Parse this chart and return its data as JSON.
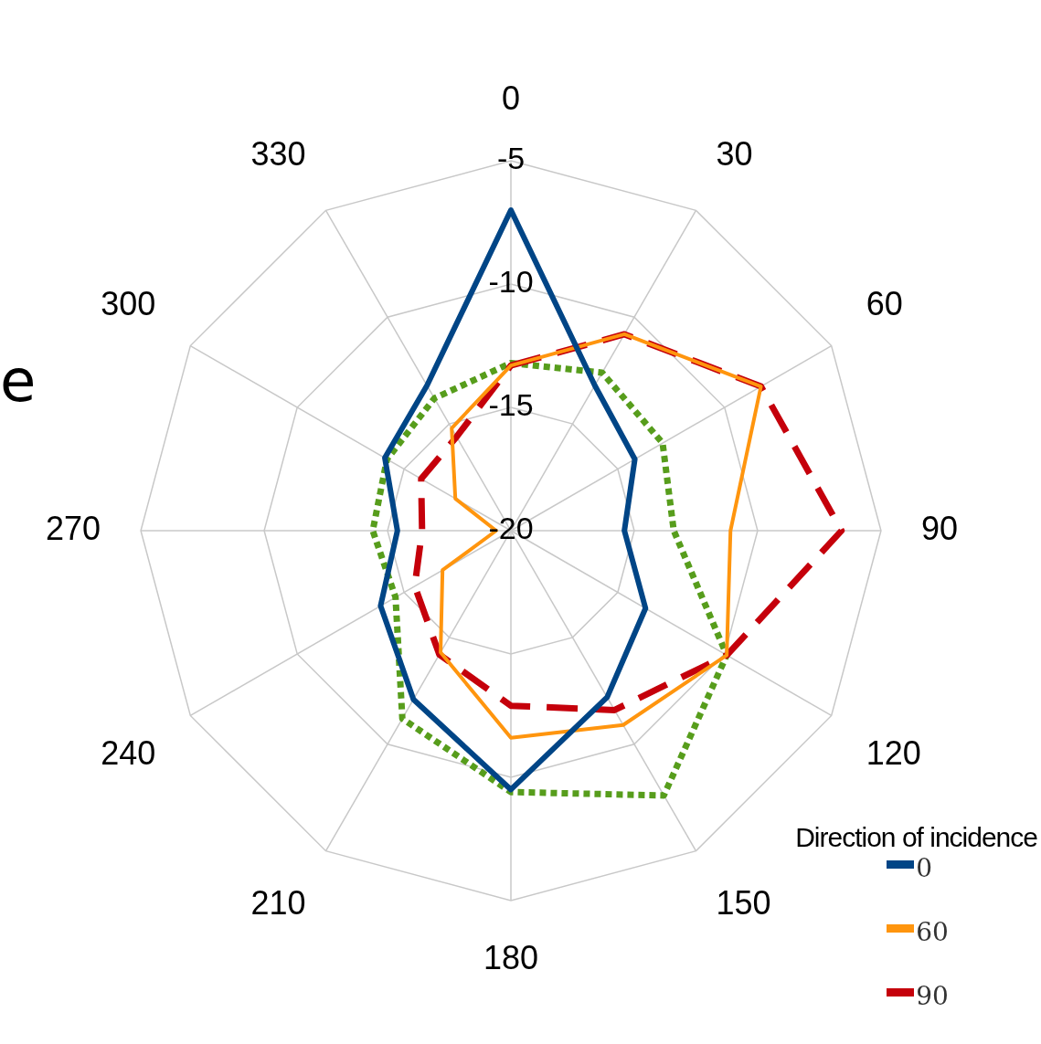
{
  "chart_data": {
    "type": "radar",
    "categories": [
      "0",
      "30",
      "60",
      "90",
      "120",
      "150",
      "180",
      "210",
      "240",
      "270",
      "300",
      "330"
    ],
    "ylim": [
      -20,
      -5
    ],
    "yticks": [
      -20,
      -15,
      -10,
      -5
    ],
    "grid": true,
    "legend": "bottom right",
    "legend_title": "Direction of incidence",
    "marker": "none",
    "annotations": [
      "e"
    ],
    "series": [
      {
        "name": "0",
        "color": "#004586",
        "line_style": "solid",
        "values": [
          -7.0,
          -13.2,
          -14.2,
          -15.4,
          -13.7,
          -12.2,
          -9.5,
          -12.1,
          -13.9,
          -15.4,
          -14.1,
          -13.2
        ]
      },
      {
        "name": "60",
        "color": "#ff950e",
        "line_style": "solid",
        "values": [
          -13.3,
          -10.8,
          -8.3,
          -11.1,
          -9.9,
          -10.9,
          -11.6,
          -14.3,
          -16.8,
          -19.4,
          -17.4,
          -15.2
        ]
      },
      {
        "name": "90",
        "color": "#c5000b",
        "line_style": "dashed",
        "values": [
          -13.3,
          -10.8,
          -8.3,
          -6.6,
          -9.9,
          -11.6,
          -12.9,
          -14.2,
          -15.5,
          -16.4,
          -15.8,
          -15.6
        ]
      },
      {
        "color": "#579d1c",
        "line_style": "dotted",
        "values": [
          -13.2,
          -12.6,
          -12.9,
          -13.4,
          -9.9,
          -7.6,
          -9.4,
          -11.2,
          -14.6,
          -14.4,
          -14.2,
          -13.8
        ]
      }
    ]
  }
}
